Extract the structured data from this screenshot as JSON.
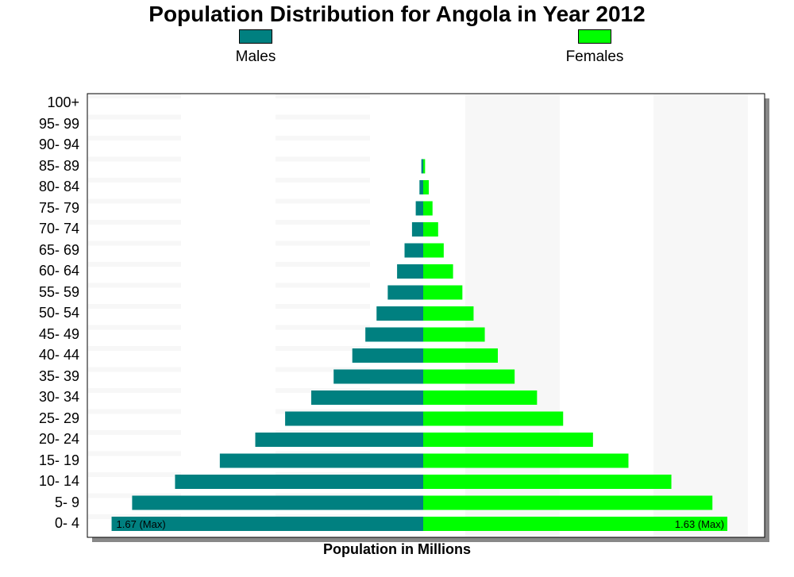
{
  "chart_data": {
    "type": "bar",
    "orientation": "horizontal",
    "layout": "population-pyramid",
    "title": "Population Distribution for Angola in Year 2012",
    "xlabel": "Population in Millions",
    "ylabel": "",
    "categories": [
      "0- 4",
      "5- 9",
      "10- 14",
      "15- 19",
      "20- 24",
      "25- 29",
      "30- 34",
      "35- 39",
      "40- 44",
      "45- 49",
      "50- 54",
      "55- 59",
      "60- 64",
      "65- 69",
      "70- 74",
      "75- 79",
      "80- 84",
      "85- 89",
      "90- 94",
      "95- 99",
      "100+"
    ],
    "series": [
      {
        "name": "Males",
        "color": "#008080",
        "values": [
          1.67,
          1.56,
          1.33,
          1.09,
          0.9,
          0.74,
          0.6,
          0.48,
          0.38,
          0.31,
          0.25,
          0.19,
          0.14,
          0.1,
          0.06,
          0.04,
          0.02,
          0.01,
          0.0,
          0.0,
          0.0
        ],
        "max_label": "1.67 (Max)"
      },
      {
        "name": "Females",
        "color": "#00ff00",
        "values": [
          1.63,
          1.55,
          1.33,
          1.1,
          0.91,
          0.75,
          0.61,
          0.49,
          0.4,
          0.33,
          0.27,
          0.21,
          0.16,
          0.11,
          0.08,
          0.05,
          0.03,
          0.01,
          0.0,
          0.0,
          0.0
        ],
        "max_label": "1.63 (Max)"
      }
    ],
    "xlim_per_side": [
      0,
      1.8
    ],
    "grid": "alternating bands",
    "legend_position": "top"
  }
}
